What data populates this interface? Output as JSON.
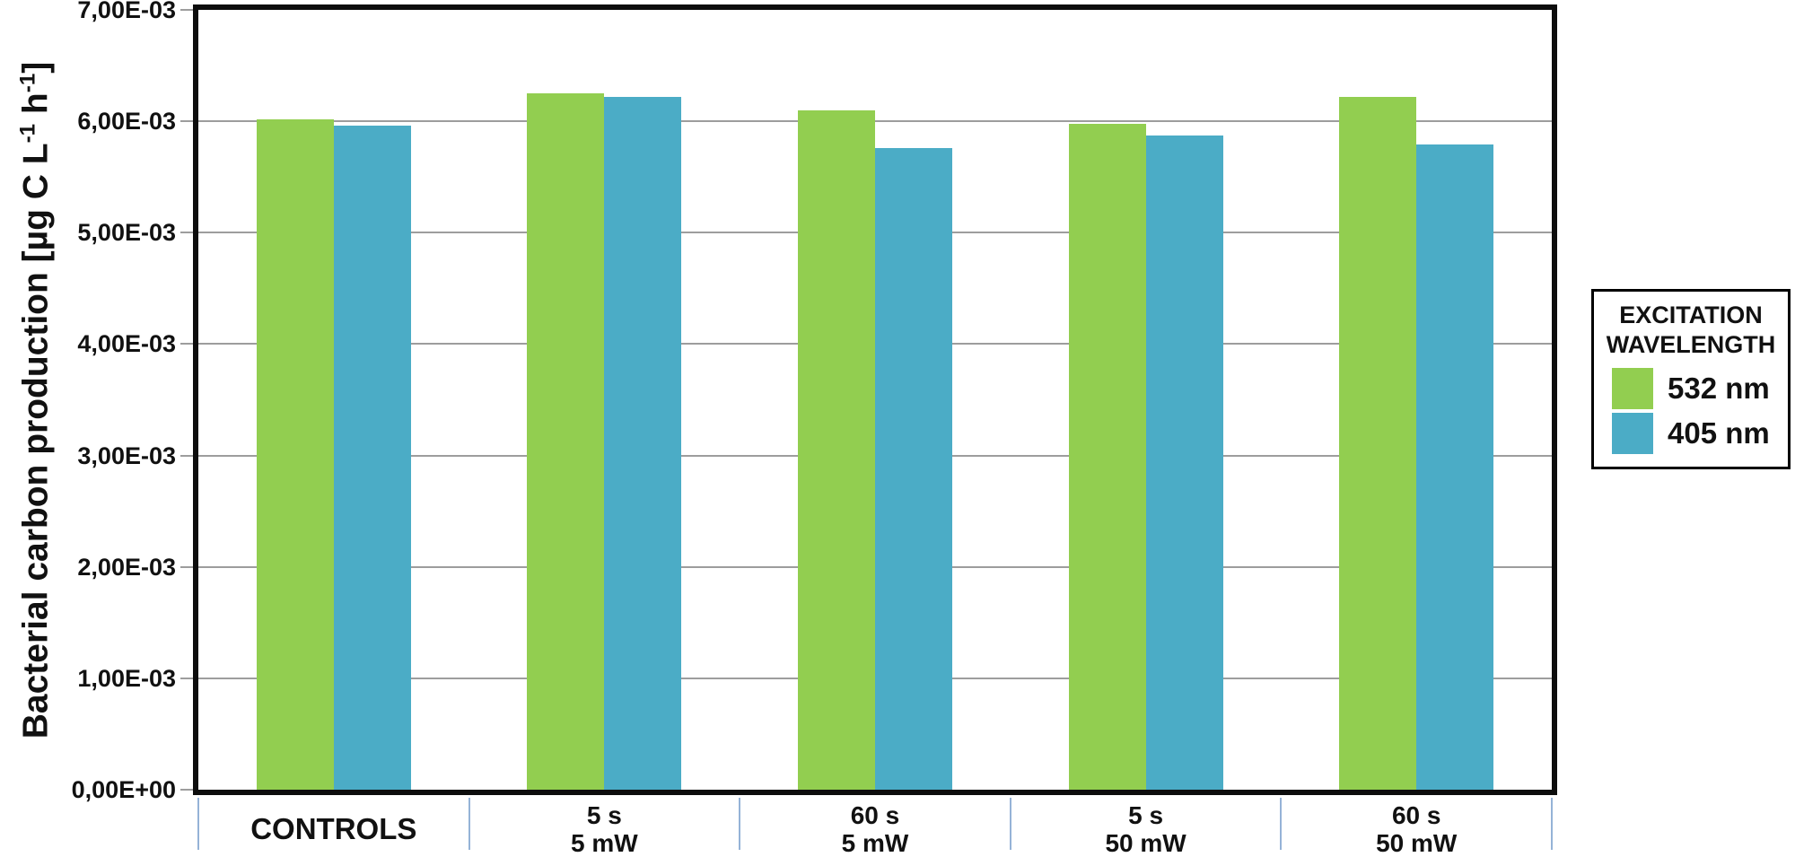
{
  "colors": {
    "green": "#92ce50",
    "blue": "#4bacc6",
    "gridline": "#9d9d9d",
    "axis_border": "#0d0d0d",
    "separator": "#95b3d7",
    "text": "#111111"
  },
  "y_axis": {
    "title_parts": {
      "pre": "Bacterial carbon production [µg C L",
      "sup1": "-1",
      "mid": " h",
      "sup2": "-1",
      "post": "]"
    },
    "tick_labels": [
      "0,00E+00",
      "1,00E-03",
      "2,00E-03",
      "3,00E-03",
      "4,00E-03",
      "5,00E-03",
      "6,00E-03",
      "7,00E-03"
    ]
  },
  "x_axis": {
    "categories": [
      {
        "line1": "CONTROLS",
        "line2": ""
      },
      {
        "line1": "5 s",
        "line2": "5 mW"
      },
      {
        "line1": "60 s",
        "line2": "5 mW"
      },
      {
        "line1": "5 s",
        "line2": "50 mW"
      },
      {
        "line1": "60 s",
        "line2": "50 mW"
      }
    ]
  },
  "legend": {
    "title_line1": "EXCITATION",
    "title_line2": "WAVELENGTH",
    "items": [
      {
        "label": "532 nm",
        "color": "#92ce50"
      },
      {
        "label": "405 nm",
        "color": "#4bacc6"
      }
    ]
  },
  "chart_data": {
    "type": "bar",
    "title": "",
    "xlabel": "",
    "ylabel": "Bacterial carbon production [µg C L⁻¹ h⁻¹]",
    "categories": [
      "CONTROLS",
      "5 s / 5 mW",
      "60 s / 5 mW",
      "5 s / 50 mW",
      "60 s / 50 mW"
    ],
    "series": [
      {
        "name": "532 nm",
        "color": "#92ce50",
        "values": [
          0.00602,
          0.00625,
          0.0061,
          0.00598,
          0.00622
        ]
      },
      {
        "name": "405 nm",
        "color": "#4bacc6",
        "values": [
          0.00596,
          0.00622,
          0.00576,
          0.00587,
          0.00579
        ]
      }
    ],
    "ylim": [
      0,
      0.007
    ],
    "ytick_step": 0.001,
    "ytick_label_format": "scientific-comma-decimal",
    "grid": true,
    "legend_title": "EXCITATION WAVELENGTH",
    "legend_position": "right"
  }
}
